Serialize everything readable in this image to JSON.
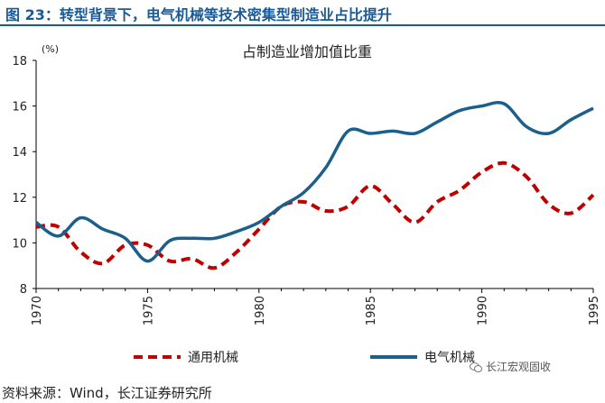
{
  "header": {
    "title": "图 23：转型背景下，电气机械等技术密集型制造业占比提升"
  },
  "source": "资料来源：Wind，长江证券研究所",
  "watermark": {
    "text": "长江宏观固收",
    "icon": "wechat-icon"
  },
  "colors": {
    "title": "#1a5a96",
    "series_electrical": "#1b5f8c",
    "series_general": "#c00000"
  },
  "chart_data": {
    "type": "line",
    "title": "占制造业增加值比重",
    "ylabel": "(%)",
    "xlabel": "",
    "xlim": [
      1970,
      1995
    ],
    "ylim": [
      8,
      18
    ],
    "y_ticks": [
      "8",
      "10",
      "12",
      "14",
      "16",
      "18"
    ],
    "x_ticks": [
      "1970",
      "1975",
      "1980",
      "1985",
      "1990",
      "1995"
    ],
    "grid": false,
    "legend": "bottom",
    "series": [
      {
        "name": "通用机械",
        "style": "dashed",
        "x": [
          1970,
          1971,
          1972,
          1973,
          1974,
          1975,
          1976,
          1977,
          1978,
          1979,
          1980,
          1981,
          1982,
          1983,
          1984,
          1985,
          1986,
          1987,
          1988,
          1989,
          1990,
          1991,
          1992,
          1993,
          1994,
          1995
        ],
        "y": [
          10.7,
          10.7,
          9.6,
          9.1,
          9.9,
          9.9,
          9.2,
          9.3,
          8.9,
          9.6,
          10.6,
          11.6,
          11.8,
          11.4,
          11.6,
          12.5,
          11.7,
          10.9,
          11.8,
          12.3,
          13.1,
          13.5,
          12.9,
          11.7,
          11.3,
          12.1
        ]
      },
      {
        "name": "电气机械",
        "style": "solid",
        "x": [
          1970,
          1971,
          1972,
          1973,
          1974,
          1975,
          1976,
          1977,
          1978,
          1979,
          1980,
          1981,
          1982,
          1983,
          1984,
          1985,
          1986,
          1987,
          1988,
          1989,
          1990,
          1991,
          1992,
          1993,
          1994,
          1995
        ],
        "y": [
          10.9,
          10.3,
          11.1,
          10.6,
          10.2,
          9.2,
          10.1,
          10.2,
          10.2,
          10.5,
          10.9,
          11.6,
          12.2,
          13.3,
          14.9,
          14.8,
          14.9,
          14.8,
          15.3,
          15.8,
          16.0,
          16.1,
          15.1,
          14.8,
          15.4,
          15.9
        ]
      }
    ]
  }
}
